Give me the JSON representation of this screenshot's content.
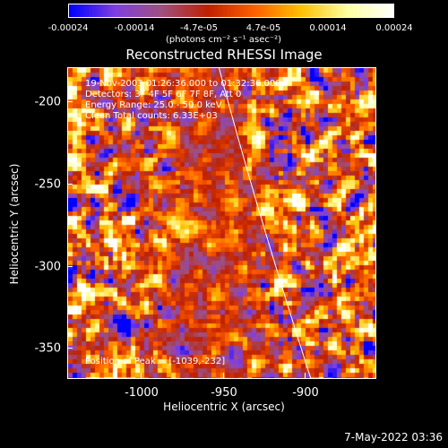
{
  "colorbar": {
    "ticks": [
      "-0.00024",
      "-0.00014",
      "-4.7e-05",
      "4.7e-05",
      "0.00014",
      "0.00024"
    ],
    "unit_label": "(photons cm⁻² s⁻¹ asec⁻²)",
    "colors": [
      "#0000ff",
      "#8040e0",
      "#a05080",
      "#c02000",
      "#ff6000",
      "#ffc000",
      "#ffffa0",
      "#ffffff"
    ]
  },
  "title": "Reconstructed RHESSI Image",
  "info": {
    "time_range": "19-Nov-2003 01:26:36.000 to 01:32:36.000",
    "detectors": "Detectors: 3F 4F 5F 6F 7F 8F, Att 0",
    "energy": "Energy Range: 25.0 - 50.0 keV",
    "clean": "Clean    Total counts: 6.33E+03",
    "peak": "Position of Peak = [-1039,-232]"
  },
  "axes": {
    "xlabel": "Heliocentric X (arcsec)",
    "ylabel": "Heliocentric Y (arcsec)",
    "xticks": [
      "-1000",
      "-950",
      "-900"
    ],
    "yticks": [
      "-200",
      "-250",
      "-300",
      "-350"
    ]
  },
  "footer_date": "7-May-2022 03:36"
}
